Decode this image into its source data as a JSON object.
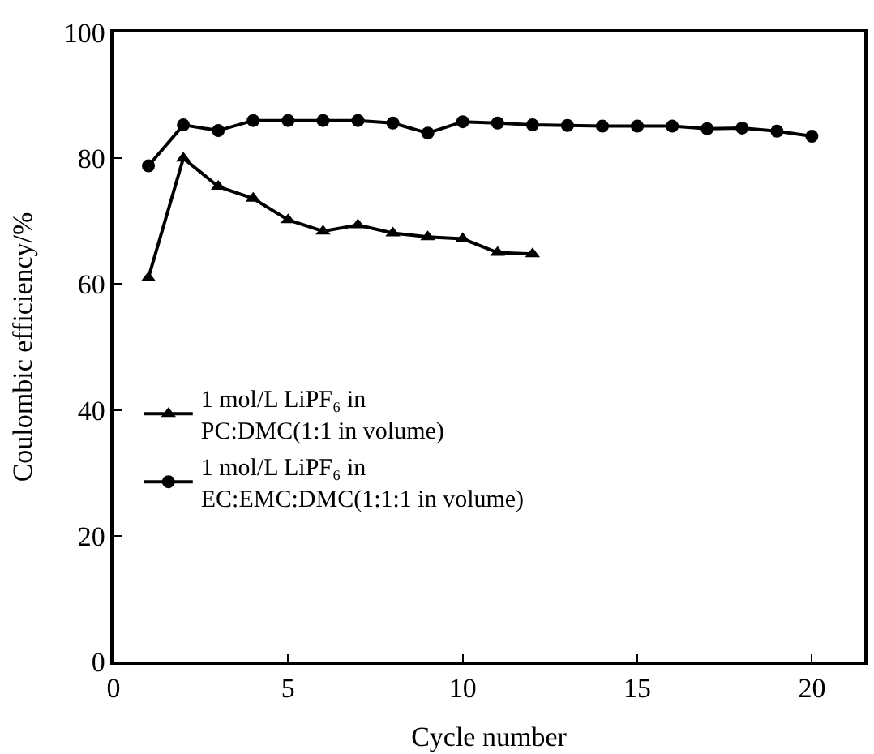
{
  "chart_data": {
    "type": "line",
    "xlabel": "Cycle number",
    "ylabel": "Coulombic efficiency/%",
    "xlim": [
      0,
      21.5
    ],
    "xticks": [
      0,
      5,
      10,
      15,
      20
    ],
    "ylim": [
      0,
      100
    ],
    "yticks": [
      0,
      20,
      40,
      60,
      80,
      100
    ],
    "legend": "left",
    "series": [
      {
        "name": "1 mol/L LiPF₆ in\nPC:DMC(1:1 in volume)",
        "color": "#000000",
        "marker": "triangle",
        "x": [
          1,
          2,
          3,
          4,
          5,
          6,
          7,
          8,
          9,
          10,
          11,
          12
        ],
        "values": [
          61,
          80,
          75.5,
          73.6,
          70.2,
          68.4,
          69.4,
          68.1,
          67.5,
          67.2,
          65,
          64.8
        ]
      },
      {
        "name": "1 mol/L LiPF₆ in\nEC:EMC:DMC(1:1:1 in volume)",
        "color": "#000000",
        "marker": "circle",
        "x": [
          1,
          2,
          3,
          4,
          5,
          6,
          7,
          8,
          9,
          10,
          11,
          12,
          13,
          14,
          15,
          16,
          17,
          18,
          19,
          20
        ],
        "values": [
          78.8,
          85.3,
          84.4,
          86,
          86,
          86,
          86,
          85.6,
          84,
          85.8,
          85.6,
          85.3,
          85.2,
          85.1,
          85.1,
          85.1,
          84.7,
          84.8,
          84.3,
          83.5
        ]
      }
    ]
  }
}
